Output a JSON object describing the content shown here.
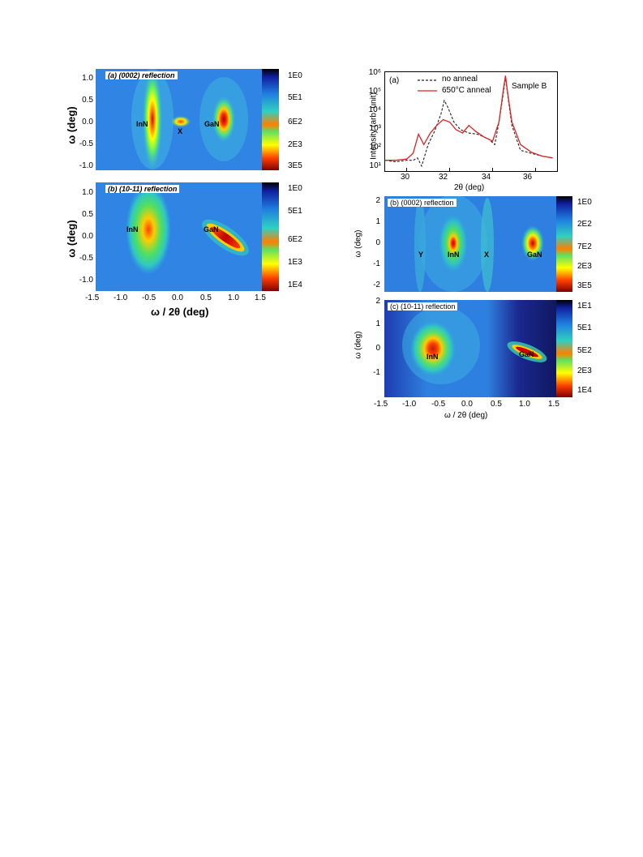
{
  "left_figure": {
    "y_axis_label": "ω (deg)",
    "x_axis_label": "ω / 2θ (deg)",
    "x_ticks": [
      "-1.5",
      "-1.0",
      "-0.5",
      "0.0",
      "0.5",
      "1.0",
      "1.5"
    ],
    "panels": [
      {
        "tag": "(a)  (0002) reflection",
        "y_ticks": [
          "1.0",
          "0.5",
          "0.0",
          "-0.5",
          "-1.0"
        ],
        "colorbar_ticks": [
          "1E0",
          "5E1",
          "6E2",
          "2E3",
          "3E5"
        ],
        "peaks": [
          "InN",
          "X",
          "GaN"
        ]
      },
      {
        "tag": "(b) (10-11) reflection",
        "y_ticks": [
          "1.0",
          "0.5",
          "0.0",
          "-0.5",
          "-1.0"
        ],
        "colorbar_ticks": [
          "1E0",
          "5E1",
          "6E2",
          "1E3",
          "1E4"
        ],
        "peaks": [
          "InN",
          "GaN"
        ]
      }
    ]
  },
  "right_figure": {
    "panel_a": {
      "tag": "(a)",
      "sample": "Sample B",
      "legend": [
        "no anneal",
        "650°C anneal"
      ],
      "y_axis_label": "Intensity (arb. unit)",
      "x_axis_label": "2θ (deg)",
      "x_ticks": [
        "30",
        "32",
        "34",
        "36"
      ],
      "y_ticks": [
        "10⁶",
        "10⁵",
        "10⁴",
        "10³",
        "10²",
        "10¹"
      ]
    },
    "panel_b": {
      "tag": "(b) (0002) reflection",
      "y_axis_label": "ω (deg)",
      "y_ticks": [
        "2",
        "1",
        "0",
        "-1",
        "-2"
      ],
      "colorbar_ticks": [
        "1E0",
        "2E2",
        "7E2",
        "2E3",
        "3E5"
      ],
      "peaks": [
        "Y",
        "InN",
        "X",
        "GaN"
      ]
    },
    "panel_c": {
      "tag": "(c) (10-11) reflection",
      "y_axis_label": "ω (deg)",
      "y_ticks": [
        "2",
        "1",
        "0",
        "-1"
      ],
      "colorbar_ticks": [
        "1E1",
        "5E1",
        "5E2",
        "2E3",
        "1E4"
      ],
      "peaks": [
        "InN",
        "GaN"
      ],
      "x_axis_label": "ω / 2θ (deg)",
      "x_ticks": [
        "-1.5",
        "-1.0",
        "-0.5",
        "0.0",
        "0.5",
        "1.0",
        "1.5"
      ]
    }
  },
  "colors": {
    "map_background": "#2e7fe0",
    "no_anneal_line": "#222222",
    "anneal_line": "#e02020"
  },
  "chart_data": [
    {
      "type": "line",
      "title": "Sample B",
      "xlabel": "2θ (deg)",
      "ylabel": "Intensity (arb. unit)",
      "xlim": [
        29,
        37
      ],
      "ylim": [
        10,
        1000000
      ],
      "y_scale": "log",
      "series": [
        {
          "name": "no anneal",
          "style": "dashed",
          "x": [
            29.0,
            29.5,
            30.0,
            30.3,
            30.5,
            30.7,
            31.0,
            31.3,
            31.6,
            31.75,
            31.9,
            32.2,
            32.5,
            32.9,
            33.3,
            33.8,
            34.1,
            34.3,
            34.5,
            34.6,
            34.7,
            34.9,
            35.3,
            35.8,
            36.3,
            36.8
          ],
          "y": [
            30,
            25,
            30,
            30,
            40,
            15,
            200,
            1000,
            8000,
            40000,
            20000,
            3000,
            1200,
            800,
            700,
            400,
            200,
            3000,
            100000,
            700000,
            80000,
            2000,
            100,
            70,
            50,
            40
          ]
        },
        {
          "name": "650°C anneal",
          "style": "solid",
          "x": [
            29.0,
            29.5,
            30.0,
            30.3,
            30.55,
            30.8,
            31.1,
            31.4,
            31.7,
            32.0,
            32.3,
            32.6,
            32.9,
            33.2,
            33.6,
            34.0,
            34.3,
            34.5,
            34.6,
            34.7,
            34.9,
            35.3,
            35.8,
            36.3,
            36.8
          ],
          "y": [
            30,
            30,
            35,
            70,
            700,
            200,
            800,
            2000,
            4000,
            3000,
            1200,
            800,
            2000,
            1000,
            500,
            300,
            3000,
            150000,
            800000,
            100000,
            3000,
            200,
            80,
            50,
            40
          ]
        }
      ]
    }
  ]
}
